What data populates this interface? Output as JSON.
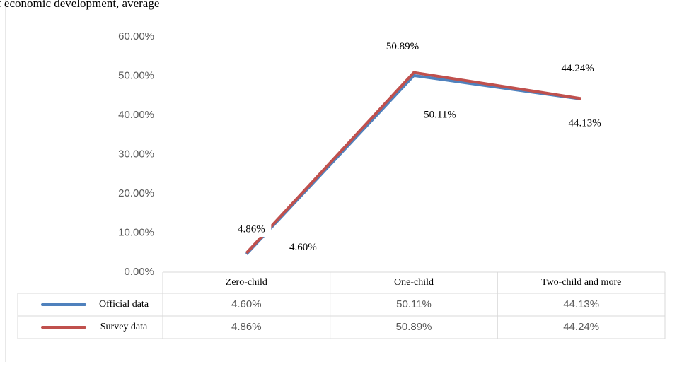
{
  "text_fragment": "f economic development, average",
  "chart_data": {
    "type": "line",
    "categories": [
      "Zero-child",
      "One-child",
      "Two-child and more"
    ],
    "series": [
      {
        "name": "Official data",
        "color": "#4f81bd",
        "values": [
          4.6,
          50.11,
          44.13
        ],
        "value_labels": [
          "4.60%",
          "50.11%",
          "44.13%"
        ]
      },
      {
        "name": "Survey data",
        "color": "#c0504d",
        "values": [
          4.86,
          50.89,
          44.24
        ],
        "value_labels": [
          "4.86%",
          "50.89%",
          "44.24%"
        ]
      }
    ],
    "ylim": [
      0,
      60
    ],
    "yticks": [
      {
        "value": 0,
        "label": "0.00%"
      },
      {
        "value": 10,
        "label": "10.00%"
      },
      {
        "value": 20,
        "label": "20.00%"
      },
      {
        "value": 30,
        "label": "30.00%"
      },
      {
        "value": 40,
        "label": "40.00%"
      },
      {
        "value": 50,
        "label": "50.00%"
      },
      {
        "value": 60,
        "label": "60.00%"
      }
    ],
    "grid": false,
    "data_table": true
  }
}
